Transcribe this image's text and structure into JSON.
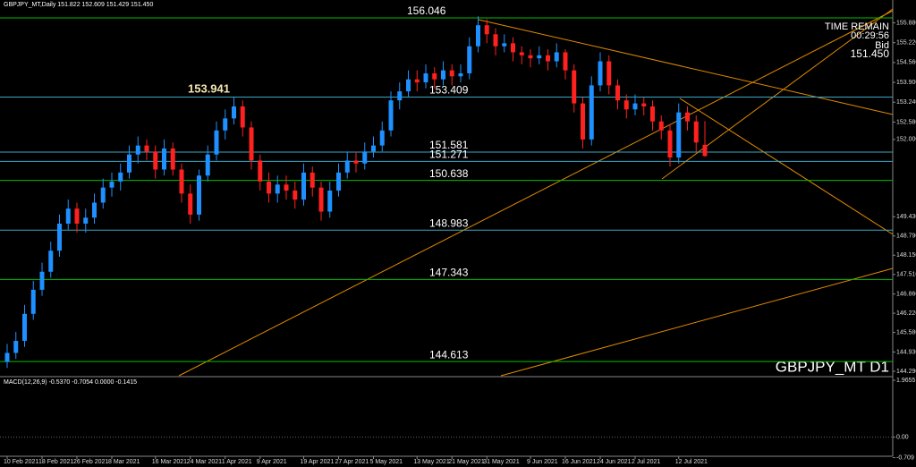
{
  "chart_data": {
    "type": "candlestick",
    "header": "GBPJPY_MT,Daily  151.822 152.609 151.429 151.450",
    "symbol_label": "GBPJPY_MT D1",
    "timer": {
      "title": "TIME REMAIN",
      "time": "00:29:56",
      "bid_label": "Bid",
      "bid": "151.450"
    },
    "annotations": [
      "153.941"
    ],
    "categories": [
      "10 Feb 2021",
      null,
      null,
      null,
      "18 Feb 2021",
      null,
      null,
      null,
      "26 Feb 2021",
      null,
      null,
      null,
      "8 Mar 2021",
      null,
      null,
      null,
      null,
      "16 Mar 2021",
      null,
      null,
      null,
      "24 Mar 2021",
      null,
      null,
      null,
      "1 Apr 2021",
      null,
      null,
      null,
      "9 Apr 2021",
      null,
      null,
      null,
      null,
      "19 Apr 2021",
      null,
      null,
      null,
      "27 Apr 2021",
      null,
      null,
      null,
      "5 May 2021",
      null,
      null,
      null,
      null,
      "13 May 2021",
      null,
      null,
      null,
      "21 May 2021",
      null,
      null,
      null,
      "31 May 2021",
      null,
      null,
      null,
      null,
      "9 Jun 2021",
      null,
      null,
      null,
      "16 Jun 2021",
      null,
      null,
      null,
      "24 Jun 2021",
      null,
      null,
      null,
      "2 Jul 2021",
      null,
      null,
      null,
      null,
      "12 Jul 2021",
      null,
      null,
      null
    ],
    "ohlc": [
      [
        144.6,
        145.2,
        144.4,
        144.9
      ],
      [
        144.9,
        145.6,
        144.7,
        145.3
      ],
      [
        145.3,
        146.5,
        145.1,
        146.2
      ],
      [
        146.2,
        147.3,
        146.0,
        147.0
      ],
      [
        147.0,
        147.9,
        146.8,
        147.6
      ],
      [
        147.6,
        148.6,
        147.4,
        148.3
      ],
      [
        148.3,
        149.5,
        148.1,
        149.2
      ],
      [
        149.2,
        150.0,
        149.0,
        149.7
      ],
      [
        149.7,
        149.9,
        148.9,
        149.2
      ],
      [
        149.2,
        149.7,
        148.9,
        149.4
      ],
      [
        149.4,
        150.2,
        149.2,
        149.9
      ],
      [
        149.9,
        150.7,
        149.7,
        150.4
      ],
      [
        150.4,
        150.9,
        150.1,
        150.6
      ],
      [
        150.6,
        151.2,
        150.3,
        150.9
      ],
      [
        150.9,
        151.8,
        150.7,
        151.5
      ],
      [
        151.5,
        152.1,
        151.2,
        151.8
      ],
      [
        151.8,
        152.0,
        151.3,
        151.6
      ],
      [
        151.6,
        151.8,
        150.7,
        151.0
      ],
      [
        151.0,
        152.0,
        150.8,
        151.7
      ],
      [
        151.7,
        151.9,
        150.8,
        151.0
      ],
      [
        151.0,
        151.2,
        149.9,
        150.2
      ],
      [
        150.2,
        150.5,
        149.2,
        149.5
      ],
      [
        149.5,
        151.0,
        149.3,
        150.8
      ],
      [
        150.8,
        151.8,
        150.6,
        151.5
      ],
      [
        151.5,
        152.6,
        151.3,
        152.3
      ],
      [
        152.3,
        153.0,
        152.0,
        152.7
      ],
      [
        152.7,
        153.4,
        152.5,
        153.1
      ],
      [
        153.1,
        153.3,
        152.1,
        152.4
      ],
      [
        152.4,
        152.6,
        151.0,
        151.3
      ],
      [
        151.3,
        151.5,
        150.3,
        150.6
      ],
      [
        150.6,
        150.9,
        149.9,
        150.2
      ],
      [
        150.2,
        150.8,
        149.9,
        150.5
      ],
      [
        150.5,
        150.8,
        150.0,
        150.3
      ],
      [
        150.3,
        150.6,
        149.7,
        150.0
      ],
      [
        150.0,
        151.2,
        149.8,
        150.9
      ],
      [
        150.9,
        151.1,
        150.1,
        150.4
      ],
      [
        150.4,
        150.6,
        149.3,
        149.6
      ],
      [
        149.6,
        150.6,
        149.4,
        150.3
      ],
      [
        150.3,
        151.2,
        150.1,
        150.9
      ],
      [
        150.9,
        151.6,
        150.7,
        151.3
      ],
      [
        151.3,
        151.6,
        150.9,
        151.2
      ],
      [
        151.2,
        151.9,
        151.0,
        151.6
      ],
      [
        151.6,
        152.1,
        151.4,
        151.8
      ],
      [
        151.8,
        152.6,
        151.6,
        152.3
      ],
      [
        152.3,
        153.6,
        152.1,
        153.3
      ],
      [
        153.3,
        153.9,
        153.0,
        153.6
      ],
      [
        153.6,
        154.3,
        153.4,
        154.0
      ],
      [
        154.0,
        154.3,
        153.6,
        153.9
      ],
      [
        153.9,
        154.5,
        153.7,
        154.2
      ],
      [
        154.2,
        154.4,
        153.7,
        154.0
      ],
      [
        154.0,
        154.6,
        153.8,
        154.3
      ],
      [
        154.3,
        154.5,
        153.8,
        154.1
      ],
      [
        154.1,
        154.5,
        153.9,
        154.2
      ],
      [
        154.2,
        155.4,
        154.0,
        155.1
      ],
      [
        155.1,
        156.1,
        154.9,
        155.8
      ],
      [
        155.8,
        156.0,
        155.2,
        155.5
      ],
      [
        155.5,
        155.7,
        154.8,
        155.1
      ],
      [
        155.1,
        155.5,
        154.9,
        155.2
      ],
      [
        155.2,
        155.4,
        154.6,
        154.9
      ],
      [
        154.9,
        155.1,
        154.5,
        154.8
      ],
      [
        154.8,
        155.0,
        154.4,
        154.7
      ],
      [
        154.7,
        155.1,
        154.5,
        154.8
      ],
      [
        154.8,
        155.0,
        154.3,
        154.6
      ],
      [
        154.6,
        155.2,
        154.4,
        154.9
      ],
      [
        154.9,
        155.0,
        154.0,
        154.3
      ],
      [
        154.3,
        154.5,
        152.9,
        153.2
      ],
      [
        153.2,
        153.4,
        151.7,
        152.0
      ],
      [
        152.0,
        154.1,
        151.8,
        153.8
      ],
      [
        153.8,
        154.9,
        153.6,
        154.6
      ],
      [
        154.6,
        154.8,
        153.5,
        153.8
      ],
      [
        153.8,
        154.0,
        153.0,
        153.3
      ],
      [
        153.3,
        153.5,
        152.7,
        153.0
      ],
      [
        153.0,
        153.5,
        152.8,
        153.2
      ],
      [
        153.2,
        153.4,
        152.8,
        153.1
      ],
      [
        153.1,
        153.3,
        152.3,
        152.6
      ],
      [
        152.6,
        152.8,
        152.0,
        152.3
      ],
      [
        152.3,
        152.5,
        151.1,
        151.4
      ],
      [
        151.4,
        153.2,
        151.2,
        152.9
      ],
      [
        152.9,
        153.1,
        152.3,
        152.6
      ],
      [
        152.6,
        152.8,
        151.6,
        151.9
      ],
      [
        151.822,
        152.609,
        151.429,
        151.45
      ]
    ],
    "up_color": "#1e90ff",
    "down_color": "#ff2020",
    "ylim": [
      144.2,
      156.58
    ],
    "yticks": [
      {
        "value": 155.88,
        "label": "155.880"
      },
      {
        "value": 155.22,
        "label": "155.220"
      },
      {
        "value": 154.56,
        "label": "154.560"
      },
      {
        "value": 153.9,
        "label": "153.900"
      },
      {
        "value": 153.24,
        "label": "153.240"
      },
      {
        "value": 152.58,
        "label": "152.580"
      },
      {
        "value": 152,
        "label": "152.000"
      },
      {
        "value": 149.43,
        "label": "149.430"
      },
      {
        "value": 148.79,
        "label": "148.790"
      },
      {
        "value": 148.15,
        "label": "148.150"
      },
      {
        "value": 147.51,
        "label": "147.510"
      },
      {
        "value": 146.86,
        "label": "146.860"
      },
      {
        "value": 146.22,
        "label": "146.220"
      },
      {
        "value": 145.58,
        "label": "145.580"
      },
      {
        "value": 144.93,
        "label": "144.930"
      },
      {
        "value": 144.29,
        "label": "144.290"
      }
    ],
    "levels": [
      {
        "value": 156.046,
        "color": "#00c000"
      },
      {
        "value": 153.409,
        "color": "#3aa8c8"
      },
      {
        "value": 151.581,
        "color": "#3aa8c8"
      },
      {
        "value": 151.271,
        "color": "#3aa8c8"
      },
      {
        "value": 150.638,
        "color": "#00c000"
      },
      {
        "value": 148.983,
        "color": "#3aa8c8"
      },
      {
        "value": 147.343,
        "color": "#00c000"
      },
      {
        "value": 144.613,
        "color": "#00c000"
      }
    ],
    "macd": {
      "label": "MACD(12,26,9) -0.5370 -0.7054 0.0000 -0.1415",
      "ylim": [
        -0.97,
        2.06
      ],
      "yticks": [
        1.9655,
        {
          "value": 0,
          "label": "0.00"
        },
        -0.709
      ]
    }
  }
}
